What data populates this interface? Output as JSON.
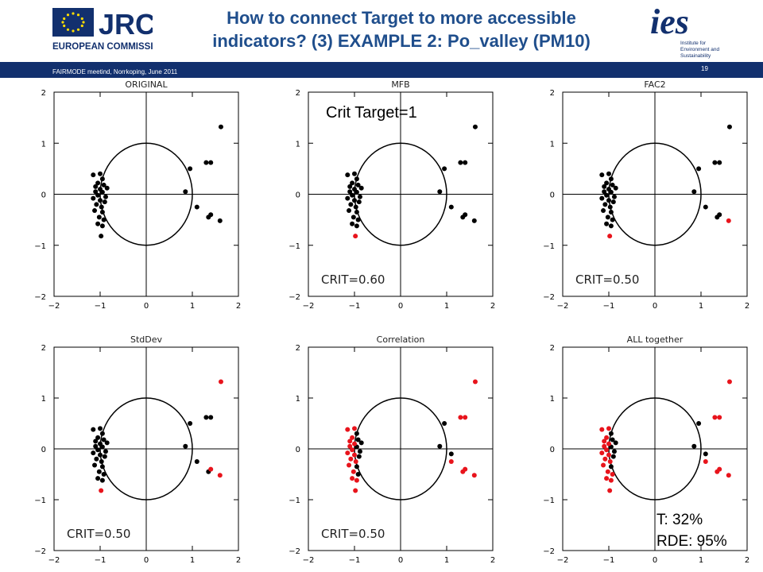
{
  "header": {
    "title_line1": "How to connect Target to more accessible",
    "title_line2": "indicators? (3) EXAMPLE 2: Po_valley (PM10)",
    "footer": "FAIRMODE meetind, Norrkoping, June 2011",
    "page_number": "19",
    "jrc_logo": "JRC",
    "jrc_subtitle": "EUROPEAN COMMISSION",
    "ies_logo": "ies",
    "ies_text": [
      "Institute for",
      "Environment and",
      "Sustainability"
    ]
  },
  "annotations": {
    "crit_target": "Crit Target=1",
    "result_t": "T: 32%",
    "result_rde": "RDE: 95%"
  },
  "colors": {
    "header_bar": "#12306e",
    "title": "#1f4e8c",
    "exceeding": "#e8141c",
    "point": "#000000"
  },
  "chart_data": [
    {
      "type": "scatter",
      "title": "ORIGINAL",
      "crit_label": "",
      "xlim": [
        -2,
        2
      ],
      "ylim": [
        -2,
        2
      ],
      "xticks": [
        -2,
        -1,
        0,
        1,
        2
      ],
      "yticks": [
        -2,
        -1,
        0,
        1,
        2
      ],
      "circle_radius": 1,
      "points_black": [
        [
          -1.15,
          0.38
        ],
        [
          -1.0,
          0.4
        ],
        [
          -0.95,
          0.3
        ],
        [
          -1.05,
          0.22
        ],
        [
          -1.1,
          0.15
        ],
        [
          -0.92,
          0.18
        ],
        [
          -1.0,
          0.1
        ],
        [
          -0.85,
          0.12
        ],
        [
          -1.1,
          0.05
        ],
        [
          -0.95,
          0.04
        ],
        [
          -1.05,
          -0.02
        ],
        [
          -0.88,
          -0.05
        ],
        [
          -1.15,
          -0.08
        ],
        [
          -1.0,
          -0.12
        ],
        [
          -0.9,
          -0.15
        ],
        [
          -1.08,
          -0.2
        ],
        [
          -0.97,
          -0.25
        ],
        [
          -1.12,
          -0.32
        ],
        [
          -0.95,
          -0.35
        ],
        [
          -1.02,
          -0.45
        ],
        [
          -0.92,
          -0.5
        ],
        [
          -1.05,
          -0.58
        ],
        [
          -0.95,
          -0.62
        ],
        [
          -0.98,
          -0.82
        ],
        [
          0.85,
          0.05
        ],
        [
          0.95,
          0.5
        ],
        [
          1.3,
          0.62
        ],
        [
          1.4,
          0.62
        ],
        [
          1.1,
          -0.25
        ],
        [
          1.35,
          -0.45
        ],
        [
          1.4,
          -0.4
        ],
        [
          1.6,
          -0.52
        ],
        [
          1.62,
          1.32
        ]
      ],
      "points_red": []
    },
    {
      "type": "scatter",
      "title": "MFB",
      "crit_label": "CRIT=0.60",
      "xlim": [
        -2,
        2
      ],
      "ylim": [
        -2,
        2
      ],
      "xticks": [
        -2,
        -1,
        0,
        1,
        2
      ],
      "yticks": [
        -2,
        -1,
        0,
        1,
        2
      ],
      "circle_radius": 1,
      "points_black": [
        [
          -1.15,
          0.38
        ],
        [
          -1.0,
          0.4
        ],
        [
          -0.95,
          0.3
        ],
        [
          -1.05,
          0.22
        ],
        [
          -1.1,
          0.15
        ],
        [
          -0.92,
          0.18
        ],
        [
          -1.0,
          0.1
        ],
        [
          -0.85,
          0.12
        ],
        [
          -1.1,
          0.05
        ],
        [
          -0.95,
          0.04
        ],
        [
          -1.05,
          -0.02
        ],
        [
          -0.88,
          -0.05
        ],
        [
          -1.15,
          -0.08
        ],
        [
          -1.0,
          -0.12
        ],
        [
          -0.9,
          -0.15
        ],
        [
          -1.08,
          -0.2
        ],
        [
          -0.97,
          -0.25
        ],
        [
          -1.12,
          -0.32
        ],
        [
          -0.95,
          -0.35
        ],
        [
          -1.02,
          -0.45
        ],
        [
          -0.92,
          -0.5
        ],
        [
          -1.05,
          -0.58
        ],
        [
          -0.95,
          -0.62
        ],
        [
          0.85,
          0.05
        ],
        [
          0.95,
          0.5
        ],
        [
          1.3,
          0.62
        ],
        [
          1.4,
          0.62
        ],
        [
          1.1,
          -0.25
        ],
        [
          1.35,
          -0.45
        ],
        [
          1.4,
          -0.4
        ],
        [
          1.6,
          -0.52
        ],
        [
          1.62,
          1.32
        ]
      ],
      "points_red": [
        [
          -0.98,
          -0.82
        ]
      ]
    },
    {
      "type": "scatter",
      "title": "FAC2",
      "crit_label": "CRIT=0.50",
      "xlim": [
        -2,
        2
      ],
      "ylim": [
        -2,
        2
      ],
      "xticks": [
        -2,
        -1,
        0,
        1,
        2
      ],
      "yticks": [
        -2,
        -1,
        0,
        1,
        2
      ],
      "circle_radius": 1,
      "points_black": [
        [
          -1.15,
          0.38
        ],
        [
          -1.0,
          0.4
        ],
        [
          -0.95,
          0.3
        ],
        [
          -1.05,
          0.22
        ],
        [
          -1.1,
          0.15
        ],
        [
          -0.92,
          0.18
        ],
        [
          -1.0,
          0.1
        ],
        [
          -0.85,
          0.12
        ],
        [
          -1.1,
          0.05
        ],
        [
          -0.95,
          0.04
        ],
        [
          -1.05,
          -0.02
        ],
        [
          -0.88,
          -0.05
        ],
        [
          -1.15,
          -0.08
        ],
        [
          -1.0,
          -0.12
        ],
        [
          -0.9,
          -0.15
        ],
        [
          -1.08,
          -0.2
        ],
        [
          -0.97,
          -0.25
        ],
        [
          -1.12,
          -0.32
        ],
        [
          -0.95,
          -0.35
        ],
        [
          -1.02,
          -0.45
        ],
        [
          -0.92,
          -0.5
        ],
        [
          -1.05,
          -0.58
        ],
        [
          -0.95,
          -0.62
        ],
        [
          0.85,
          0.05
        ],
        [
          0.95,
          0.5
        ],
        [
          1.3,
          0.62
        ],
        [
          1.4,
          0.62
        ],
        [
          1.1,
          -0.25
        ],
        [
          1.35,
          -0.45
        ],
        [
          1.4,
          -0.4
        ],
        [
          1.62,
          1.32
        ]
      ],
      "points_red": [
        [
          -0.98,
          -0.82
        ],
        [
          1.6,
          -0.52
        ]
      ]
    },
    {
      "type": "scatter",
      "title": "StdDev",
      "crit_label": "CRIT=0.50",
      "xlim": [
        -2,
        2
      ],
      "ylim": [
        -2,
        2
      ],
      "xticks": [
        -2,
        -1,
        0,
        1,
        2
      ],
      "yticks": [
        -2,
        -1,
        0,
        1,
        2
      ],
      "circle_radius": 1,
      "points_black": [
        [
          -1.15,
          0.38
        ],
        [
          -1.0,
          0.4
        ],
        [
          -0.95,
          0.3
        ],
        [
          -1.05,
          0.22
        ],
        [
          -1.1,
          0.15
        ],
        [
          -0.92,
          0.18
        ],
        [
          -1.0,
          0.1
        ],
        [
          -0.85,
          0.12
        ],
        [
          -1.1,
          0.05
        ],
        [
          -0.95,
          0.04
        ],
        [
          -1.05,
          -0.02
        ],
        [
          -0.88,
          -0.05
        ],
        [
          -1.15,
          -0.08
        ],
        [
          -1.0,
          -0.12
        ],
        [
          -0.9,
          -0.15
        ],
        [
          -1.08,
          -0.2
        ],
        [
          -0.97,
          -0.25
        ],
        [
          -1.12,
          -0.32
        ],
        [
          -0.95,
          -0.35
        ],
        [
          -1.02,
          -0.45
        ],
        [
          -0.92,
          -0.5
        ],
        [
          -1.05,
          -0.58
        ],
        [
          -0.95,
          -0.62
        ],
        [
          0.85,
          0.05
        ],
        [
          0.95,
          0.5
        ],
        [
          1.3,
          0.62
        ],
        [
          1.4,
          0.62
        ],
        [
          1.1,
          -0.25
        ],
        [
          1.35,
          -0.45
        ]
      ],
      "points_red": [
        [
          -0.98,
          -0.82
        ],
        [
          1.4,
          -0.4
        ],
        [
          1.6,
          -0.52
        ],
        [
          1.62,
          1.32
        ]
      ]
    },
    {
      "type": "scatter",
      "title": "Correlation",
      "crit_label": "CRIT=0.50",
      "xlim": [
        -2,
        2
      ],
      "ylim": [
        -2,
        2
      ],
      "xticks": [
        -2,
        -1,
        0,
        1,
        2
      ],
      "yticks": [
        -2,
        -1,
        0,
        1,
        2
      ],
      "circle_radius": 1,
      "points_black": [
        [
          -0.95,
          0.3
        ],
        [
          -0.92,
          0.18
        ],
        [
          -0.85,
          0.12
        ],
        [
          -0.95,
          0.04
        ],
        [
          -0.88,
          -0.05
        ],
        [
          -0.9,
          -0.15
        ],
        [
          -0.95,
          -0.35
        ],
        [
          -0.92,
          -0.5
        ],
        [
          0.85,
          0.05
        ],
        [
          0.95,
          0.5
        ],
        [
          1.1,
          -0.1
        ]
      ],
      "points_red": [
        [
          -1.15,
          0.38
        ],
        [
          -1.0,
          0.4
        ],
        [
          -1.05,
          0.22
        ],
        [
          -1.1,
          0.15
        ],
        [
          -1.0,
          0.1
        ],
        [
          -1.1,
          0.05
        ],
        [
          -1.05,
          -0.02
        ],
        [
          -1.15,
          -0.08
        ],
        [
          -1.0,
          -0.12
        ],
        [
          -1.08,
          -0.2
        ],
        [
          -0.97,
          -0.25
        ],
        [
          -1.12,
          -0.32
        ],
        [
          -1.02,
          -0.45
        ],
        [
          -1.05,
          -0.58
        ],
        [
          -0.95,
          -0.62
        ],
        [
          -0.98,
          -0.82
        ],
        [
          1.3,
          0.62
        ],
        [
          1.4,
          0.62
        ],
        [
          1.1,
          -0.25
        ],
        [
          1.35,
          -0.45
        ],
        [
          1.4,
          -0.4
        ],
        [
          1.6,
          -0.52
        ],
        [
          1.62,
          1.32
        ]
      ]
    },
    {
      "type": "scatter",
      "title": "ALL together",
      "crit_label": "",
      "xlim": [
        -2,
        2
      ],
      "ylim": [
        -2,
        2
      ],
      "xticks": [
        -2,
        -1,
        0,
        1,
        2
      ],
      "yticks": [
        -2,
        -1,
        0,
        1,
        2
      ],
      "circle_radius": 1,
      "points_black": [
        [
          -0.95,
          0.3
        ],
        [
          -0.92,
          0.18
        ],
        [
          -0.85,
          0.12
        ],
        [
          -0.95,
          0.04
        ],
        [
          -0.88,
          -0.05
        ],
        [
          -0.9,
          -0.15
        ],
        [
          -0.95,
          -0.35
        ],
        [
          0.85,
          0.05
        ],
        [
          0.95,
          0.5
        ],
        [
          1.1,
          -0.1
        ]
      ],
      "points_red": [
        [
          -1.15,
          0.38
        ],
        [
          -1.0,
          0.4
        ],
        [
          -1.05,
          0.22
        ],
        [
          -1.1,
          0.15
        ],
        [
          -1.0,
          0.1
        ],
        [
          -1.1,
          0.05
        ],
        [
          -1.05,
          -0.02
        ],
        [
          -1.15,
          -0.08
        ],
        [
          -1.0,
          -0.12
        ],
        [
          -1.08,
          -0.2
        ],
        [
          -0.97,
          -0.25
        ],
        [
          -1.12,
          -0.32
        ],
        [
          -1.02,
          -0.45
        ],
        [
          -0.92,
          -0.5
        ],
        [
          -1.05,
          -0.58
        ],
        [
          -0.95,
          -0.62
        ],
        [
          -0.98,
          -0.82
        ],
        [
          1.3,
          0.62
        ],
        [
          1.4,
          0.62
        ],
        [
          1.1,
          -0.25
        ],
        [
          1.35,
          -0.45
        ],
        [
          1.4,
          -0.4
        ],
        [
          1.6,
          -0.52
        ],
        [
          1.62,
          1.32
        ]
      ]
    }
  ]
}
